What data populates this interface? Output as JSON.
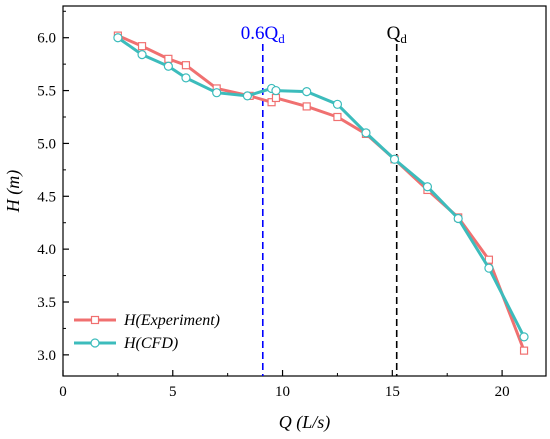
{
  "chart_data": {
    "type": "line",
    "xlabel": "Q (L/s)",
    "ylabel": "H (m)",
    "xlim": [
      0,
      22
    ],
    "ylim": [
      2.8,
      6.3
    ],
    "x_ticks": [
      "0",
      "5",
      "10",
      "15",
      "20"
    ],
    "x_tick_values": [
      0,
      5,
      10,
      15,
      20
    ],
    "y_ticks": [
      "3.0",
      "3.5",
      "4.0",
      "4.5",
      "5.0",
      "5.5",
      "6.0"
    ],
    "y_tick_values": [
      3.0,
      3.5,
      4.0,
      4.5,
      5.0,
      5.5,
      6.0
    ],
    "grid": false,
    "legend_position": "bottom-left",
    "series": [
      {
        "name": "H(Experiment)",
        "color": "#f07070",
        "marker": "square",
        "x": [
          2.5,
          3.6,
          4.8,
          5.6,
          7.0,
          8.5,
          9.5,
          9.7,
          11.1,
          12.5,
          13.8,
          15.1,
          16.6,
          18.0,
          19.4,
          21.0
        ],
        "y": [
          6.02,
          5.92,
          5.8,
          5.74,
          5.52,
          5.45,
          5.39,
          5.43,
          5.35,
          5.25,
          5.09,
          4.85,
          4.56,
          4.3,
          3.9,
          3.04
        ]
      },
      {
        "name": "H(CFD)",
        "color": "#3cbcbc",
        "marker": "circle",
        "x": [
          2.5,
          3.6,
          4.8,
          5.6,
          7.0,
          8.4,
          9.5,
          9.7,
          11.1,
          12.5,
          13.8,
          15.1,
          16.6,
          18.0,
          19.4,
          21.0
        ],
        "y": [
          6.0,
          5.84,
          5.73,
          5.62,
          5.48,
          5.45,
          5.52,
          5.5,
          5.49,
          5.37,
          5.1,
          4.85,
          4.59,
          4.29,
          3.82,
          3.17
        ]
      }
    ],
    "reference_lines": [
      {
        "label": "0.6Q",
        "subscript": "d",
        "x": 9.1,
        "color": "#0000ff"
      },
      {
        "label": "Q",
        "subscript": "d",
        "x": 15.2,
        "color": "#000000"
      }
    ]
  }
}
